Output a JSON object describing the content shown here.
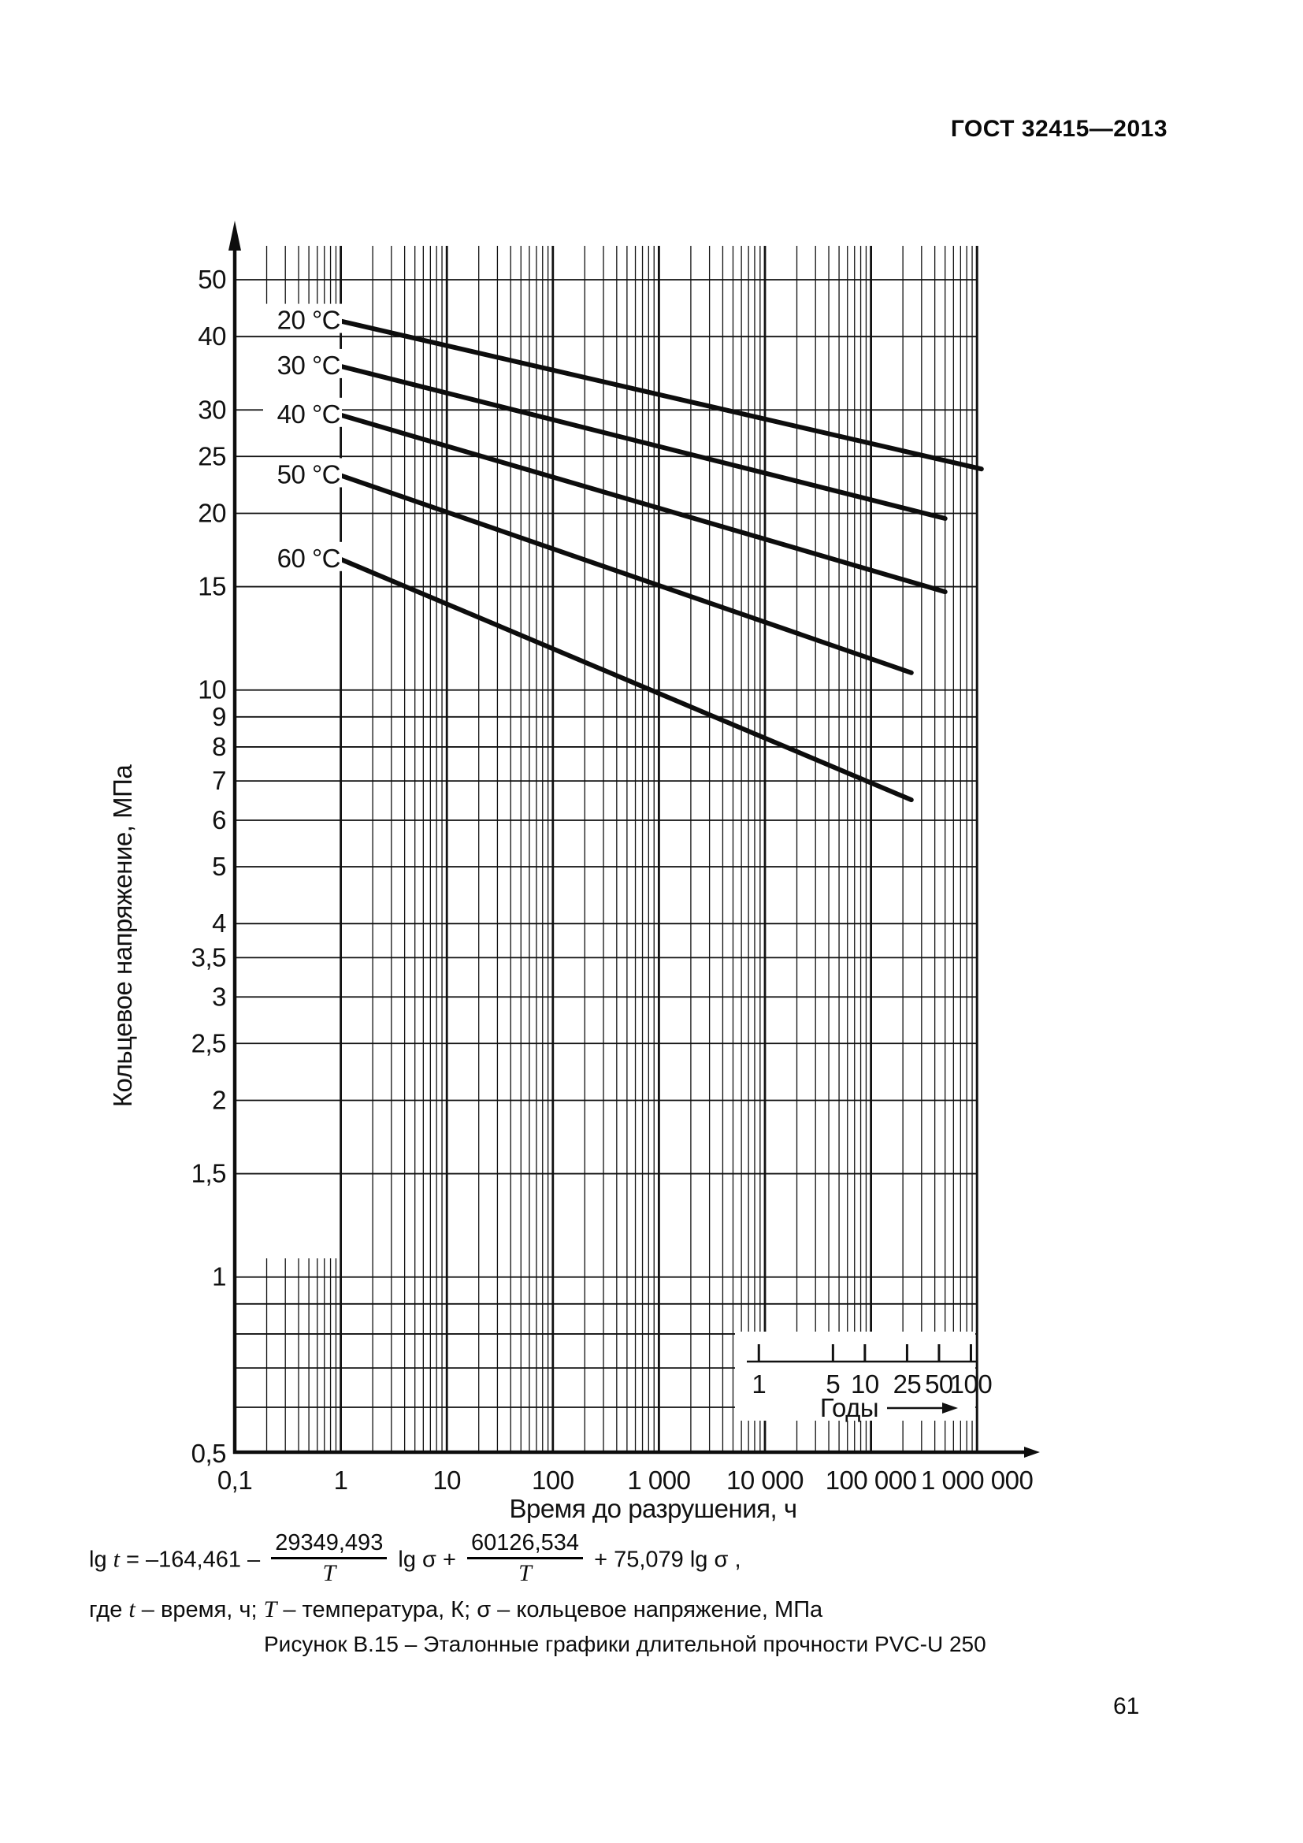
{
  "header": {
    "title": "ГОСТ 32415—2013"
  },
  "chart_data": {
    "type": "line",
    "x_scale": "log",
    "y_scale": "log",
    "xlabel": "Время до разрушения, ч",
    "ylabel": "Кольцевое напряжение, МПа",
    "xlim": [
      0.1,
      1000000
    ],
    "ylim": [
      0.5,
      57
    ],
    "grid": true,
    "x_ticks": {
      "values": [
        0.1,
        1,
        10,
        100,
        1000,
        10000,
        100000,
        1000000
      ],
      "labels": [
        "0,1",
        "1",
        "10",
        "100",
        "1 000",
        "10 000",
        "100 000",
        "1 000 000"
      ]
    },
    "y_ticks": {
      "values": [
        50,
        40,
        30,
        25,
        20,
        15,
        10,
        9,
        8,
        7,
        6,
        5,
        4,
        3.5,
        3,
        2.5,
        2,
        1.5,
        1,
        0.5
      ],
      "labels": [
        "50",
        "40",
        "30",
        "25",
        "20",
        "15",
        "10",
        "9",
        "8",
        "7",
        "6",
        "5",
        "4",
        "3,5",
        "3",
        "2,5",
        "2",
        "1,5",
        "1",
        "0,5"
      ]
    },
    "y_gridline_values": [
      0.6,
      0.7,
      0.8,
      0.9,
      1,
      1.5,
      2,
      2.5,
      3,
      3.5,
      4,
      5,
      6,
      7,
      8,
      9,
      10,
      15,
      20,
      25,
      30,
      40,
      50
    ],
    "series": [
      {
        "name": "20 °C",
        "points": [
          [
            1,
            42.5
          ],
          [
            1100000,
            23.8
          ]
        ]
      },
      {
        "name": "30 °C",
        "points": [
          [
            1,
            35.6
          ],
          [
            500000,
            19.6
          ]
        ]
      },
      {
        "name": "40 °C",
        "points": [
          [
            1,
            29.4
          ],
          [
            500000,
            14.7
          ]
        ]
      },
      {
        "name": "50 °C",
        "points": [
          [
            1,
            23.2
          ],
          [
            240000,
            10.7
          ]
        ]
      },
      {
        "name": "60 °C",
        "points": [
          [
            1,
            16.7
          ],
          [
            240000,
            6.5
          ]
        ]
      }
    ],
    "years_scale": {
      "label": "Годы",
      "tick_values": [
        1,
        5,
        10,
        25,
        50,
        100
      ],
      "tick_labels": [
        "1",
        "5",
        "10",
        "25",
        "50",
        "100"
      ],
      "hours_per_year": 8760
    },
    "ink_color": "#111111"
  },
  "formula": {
    "lg": "lg ",
    "t": "t",
    "eq": " = –164,461 – ",
    "frac1": {
      "num": "29349,493",
      "den": "T"
    },
    "mid": " lg σ + ",
    "frac2": {
      "num": "60126,534",
      "den": "T"
    },
    "tail": " + 75,079 lg σ ,",
    "note": [
      "где ",
      "t",
      " – время, ч; ",
      "T",
      " – температура, К; ",
      "σ",
      " – кольцевое напряжение, МПа"
    ]
  },
  "caption": "Рисунок В.15 – Эталонные графики длительной прочности PVC-U 250",
  "page_number": "61"
}
